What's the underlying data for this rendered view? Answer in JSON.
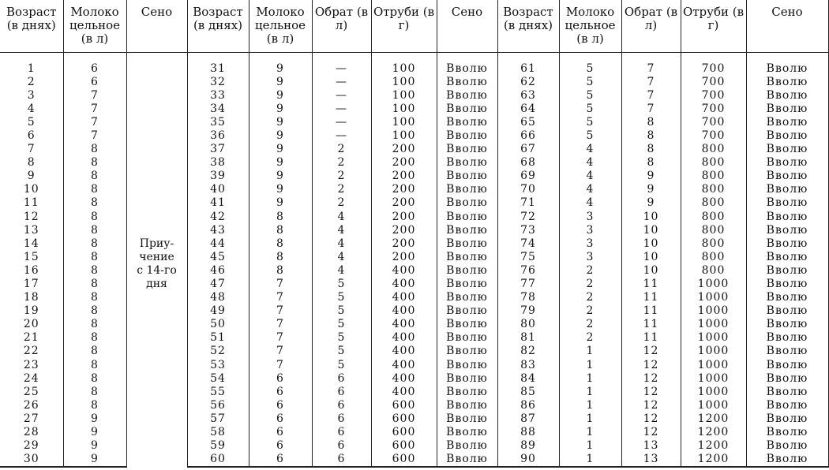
{
  "headers": [
    "Возраст (в днях)",
    "Молоко цельное (в л)",
    "Сено",
    "Возраст (в днях)",
    "Молоко цельное (в л)",
    "Обрат (в л)",
    "Отруби (в г)",
    "Сено",
    "Возраст (в днях)",
    "Молоко цельное (в л)",
    "Обрат (в л)",
    "Отруби (в г)",
    "Сено"
  ],
  "group1": {
    "seno_note": "Приу-\nчение\nс 14-го\nдня",
    "rows": [
      [
        "1",
        "6"
      ],
      [
        "2",
        "6"
      ],
      [
        "3",
        "7"
      ],
      [
        "4",
        "7"
      ],
      [
        "5",
        "7"
      ],
      [
        "6",
        "7"
      ],
      [
        "7",
        "8"
      ],
      [
        "8",
        "8"
      ],
      [
        "9",
        "8"
      ],
      [
        "10",
        "8"
      ],
      [
        "11",
        "8"
      ],
      [
        "12",
        "8"
      ],
      [
        "13",
        "8"
      ],
      [
        "14",
        "8"
      ],
      [
        "15",
        "8"
      ],
      [
        "16",
        "8"
      ],
      [
        "17",
        "8"
      ],
      [
        "18",
        "8"
      ],
      [
        "19",
        "8"
      ],
      [
        "20",
        "8"
      ],
      [
        "21",
        "8"
      ],
      [
        "22",
        "8"
      ],
      [
        "23",
        "8"
      ],
      [
        "24",
        "8"
      ],
      [
        "25",
        "8"
      ],
      [
        "26",
        "8"
      ],
      [
        "27",
        "9"
      ],
      [
        "28",
        "9"
      ],
      [
        "29",
        "9"
      ],
      [
        "30",
        "9"
      ]
    ]
  },
  "group2": {
    "rows": [
      [
        "31",
        "9",
        "—",
        "100",
        "Вволю"
      ],
      [
        "32",
        "9",
        "—",
        "100",
        "Вволю"
      ],
      [
        "33",
        "9",
        "—",
        "100",
        "Вволю"
      ],
      [
        "34",
        "9",
        "—",
        "100",
        "Вволю"
      ],
      [
        "35",
        "9",
        "—",
        "100",
        "Вволю"
      ],
      [
        "36",
        "9",
        "—",
        "100",
        "Вволю"
      ],
      [
        "37",
        "9",
        "2",
        "200",
        "Вволю"
      ],
      [
        "38",
        "9",
        "2",
        "200",
        "Вволю"
      ],
      [
        "39",
        "9",
        "2",
        "200",
        "Вволю"
      ],
      [
        "40",
        "9",
        "2",
        "200",
        "Вволю"
      ],
      [
        "41",
        "9",
        "2",
        "200",
        "Вволю"
      ],
      [
        "42",
        "8",
        "4",
        "200",
        "Вволю"
      ],
      [
        "43",
        "8",
        "4",
        "200",
        "Вволю"
      ],
      [
        "44",
        "8",
        "4",
        "200",
        "Вволю"
      ],
      [
        "45",
        "8",
        "4",
        "200",
        "Вволю"
      ],
      [
        "46",
        "8",
        "4",
        "400",
        "Вволю"
      ],
      [
        "47",
        "7",
        "5",
        "400",
        "Вволю"
      ],
      [
        "48",
        "7",
        "5",
        "400",
        "Вволю"
      ],
      [
        "49",
        "7",
        "5",
        "400",
        "Вволю"
      ],
      [
        "50",
        "7",
        "5",
        "400",
        "Вволю"
      ],
      [
        "51",
        "7",
        "5",
        "400",
        "Вволю"
      ],
      [
        "52",
        "7",
        "5",
        "400",
        "Вволю"
      ],
      [
        "53",
        "7",
        "5",
        "400",
        "Вволю"
      ],
      [
        "54",
        "6",
        "6",
        "400",
        "Вволю"
      ],
      [
        "55",
        "6",
        "6",
        "400",
        "Вволю"
      ],
      [
        "56",
        "6",
        "6",
        "600",
        "Вволю"
      ],
      [
        "57",
        "6",
        "6",
        "600",
        "Вволю"
      ],
      [
        "58",
        "6",
        "6",
        "600",
        "Вволю"
      ],
      [
        "59",
        "6",
        "6",
        "600",
        "Вволю"
      ],
      [
        "60",
        "6",
        "6",
        "600",
        "Вволю"
      ]
    ]
  },
  "group3": {
    "rows": [
      [
        "61",
        "5",
        "7",
        "700",
        "Вволю"
      ],
      [
        "62",
        "5",
        "7",
        "700",
        "Вволю"
      ],
      [
        "63",
        "5",
        "7",
        "700",
        "Вволю"
      ],
      [
        "64",
        "5",
        "7",
        "700",
        "Вволю"
      ],
      [
        "65",
        "5",
        "8",
        "700",
        "Вволю"
      ],
      [
        "66",
        "5",
        "8",
        "700",
        "Вволю"
      ],
      [
        "67",
        "4",
        "8",
        "800",
        "Вволю"
      ],
      [
        "68",
        "4",
        "8",
        "800",
        "Вволю"
      ],
      [
        "69",
        "4",
        "9",
        "800",
        "Вволю"
      ],
      [
        "70",
        "4",
        "9",
        "800",
        "Вволю"
      ],
      [
        "71",
        "4",
        "9",
        "800",
        "Вволю"
      ],
      [
        "72",
        "3",
        "10",
        "800",
        "Вволю"
      ],
      [
        "73",
        "3",
        "10",
        "800",
        "Вволю"
      ],
      [
        "74",
        "3",
        "10",
        "800",
        "Вволю"
      ],
      [
        "75",
        "3",
        "10",
        "800",
        "Вволю"
      ],
      [
        "76",
        "2",
        "10",
        "800",
        "Вволю"
      ],
      [
        "77",
        "2",
        "11",
        "1000",
        "Вволю"
      ],
      [
        "78",
        "2",
        "11",
        "1000",
        "Вволю"
      ],
      [
        "79",
        "2",
        "11",
        "1000",
        "Вволю"
      ],
      [
        "80",
        "2",
        "11",
        "1000",
        "Вволю"
      ],
      [
        "81",
        "2",
        "11",
        "1000",
        "Вволю"
      ],
      [
        "82",
        "1",
        "12",
        "1000",
        "Вволю"
      ],
      [
        "83",
        "1",
        "12",
        "1000",
        "Вволю"
      ],
      [
        "84",
        "1",
        "12",
        "1000",
        "Вволю"
      ],
      [
        "85",
        "1",
        "12",
        "1000",
        "Вволю"
      ],
      [
        "86",
        "1",
        "12",
        "1000",
        "Вволю"
      ],
      [
        "87",
        "1",
        "12",
        "1200",
        "Вволю"
      ],
      [
        "88",
        "1",
        "12",
        "1200",
        "Вволю"
      ],
      [
        "89",
        "1",
        "13",
        "1200",
        "Вволю"
      ],
      [
        "90",
        "1",
        "13",
        "1200",
        "Вволю"
      ]
    ]
  }
}
